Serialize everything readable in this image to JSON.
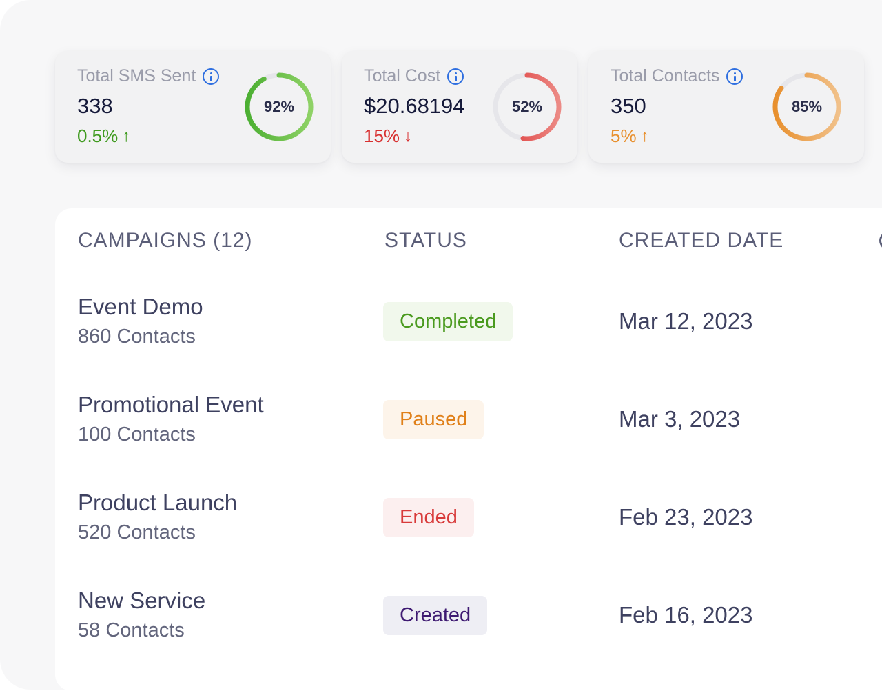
{
  "stats": [
    {
      "label": "Total SMS Sent",
      "value": "338",
      "change": "0.5%",
      "direction": "up",
      "arrow": "↑",
      "percent_label": "92%",
      "progress": 0.92,
      "color": "#4caf32",
      "color_light": "#8fd266",
      "info_icon": "info-icon"
    },
    {
      "label": "Total Cost",
      "value": "$20.68194",
      "change": "15%",
      "direction": "down",
      "arrow": "↓",
      "percent_label": "52%",
      "progress": 0.52,
      "color": "#dc3030",
      "color_light": "#ec8a85",
      "info_icon": "info-icon"
    },
    {
      "label": "Total Contacts",
      "value": "350",
      "change": "5%",
      "direction": "up",
      "arrow": "↑",
      "percent_label": "85%",
      "progress": 0.85,
      "color": "#e8902e",
      "color_light": "#f1c18a",
      "info_icon": "info-icon"
    }
  ],
  "table": {
    "headers": {
      "campaigns": "CAMPAIGNS (12)",
      "status": "STATUS",
      "created_date": "CREATED DATE"
    },
    "rows": [
      {
        "name": "Event Demo",
        "contacts": "860 Contacts",
        "status": "Completed",
        "status_color": "#4a9a1e",
        "status_bg": "#f1f8ec",
        "date": "Mar 12, 2023"
      },
      {
        "name": "Promotional Event",
        "contacts": "100 Contacts",
        "status": "Paused",
        "status_color": "#e0801a",
        "status_bg": "#fdf4ea",
        "date": "Mar 3, 2023"
      },
      {
        "name": "Product Launch",
        "contacts": "520 Contacts",
        "status": "Ended",
        "status_color": "#d83a3a",
        "status_bg": "#fcefef",
        "date": "Feb 23, 2023"
      },
      {
        "name": "New Service",
        "contacts": "58 Contacts",
        "status": "Created",
        "status_color": "#3e1a72",
        "status_bg": "#eeeef4",
        "date": "Feb 16, 2023"
      }
    ]
  }
}
